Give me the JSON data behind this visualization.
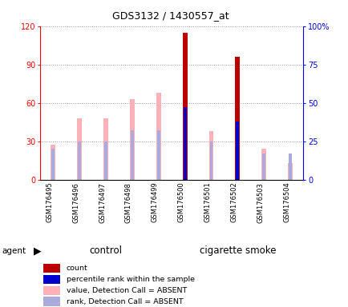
{
  "title": "GDS3132 / 1430557_at",
  "samples": [
    "GSM176495",
    "GSM176496",
    "GSM176497",
    "GSM176498",
    "GSM176499",
    "GSM176500",
    "GSM176501",
    "GSM176502",
    "GSM176503",
    "GSM176504"
  ],
  "value_absent": [
    27,
    48,
    48,
    63,
    68,
    null,
    38,
    null,
    24,
    13
  ],
  "rank_absent": [
    20,
    25,
    25,
    32,
    32,
    null,
    25,
    null,
    17,
    17
  ],
  "value_present": [
    null,
    null,
    null,
    null,
    null,
    115,
    null,
    96,
    null,
    null
  ],
  "rank_present": [
    null,
    null,
    null,
    null,
    null,
    47,
    null,
    38,
    null,
    null
  ],
  "ylim_left": [
    0,
    120
  ],
  "ylim_right": [
    0,
    100
  ],
  "yticks_left": [
    0,
    30,
    60,
    90,
    120
  ],
  "ytick_labels_left": [
    "0",
    "30",
    "60",
    "90",
    "120"
  ],
  "yticks_right": [
    0,
    25,
    50,
    75,
    100
  ],
  "ytick_labels_right": [
    "0",
    "25",
    "50",
    "75",
    "100%"
  ],
  "bar_absent_value_color": "#FFB0B8",
  "bar_absent_rank_color": "#AAAADD",
  "bar_present_value_color": "#BB0000",
  "bar_present_rank_color": "#0000CC",
  "group_bg_color": "#77EE77",
  "tick_bg_color": "#C8C8C8",
  "control_label": "control",
  "smoke_label": "cigarette smoke",
  "legend": [
    {
      "label": "count",
      "color": "#BB0000"
    },
    {
      "label": "percentile rank within the sample",
      "color": "#0000CC"
    },
    {
      "label": "value, Detection Call = ABSENT",
      "color": "#FFB0B8"
    },
    {
      "label": "rank, Detection Call = ABSENT",
      "color": "#AAAADD"
    }
  ]
}
